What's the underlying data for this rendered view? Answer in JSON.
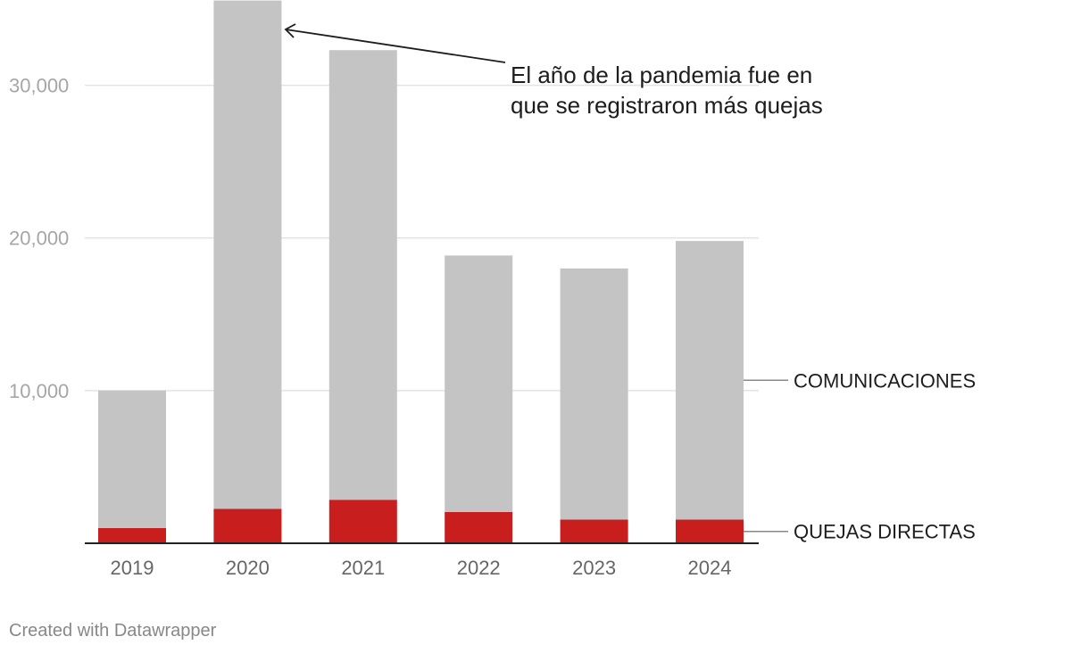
{
  "chart_data": {
    "type": "bar",
    "stacked": true,
    "categories": [
      "2019",
      "2020",
      "2021",
      "2022",
      "2023",
      "2024"
    ],
    "series": [
      {
        "name": "QUEJAS DIRECTAS",
        "values": [
          1000,
          2250,
          2850,
          2050,
          1550,
          1550
        ],
        "color": "#c81e1e"
      },
      {
        "name": "COMUNICACIONES",
        "values": [
          9000,
          33300,
          29450,
          16800,
          16450,
          18250
        ],
        "color": "#c4c4c4"
      }
    ],
    "ylim": [
      0,
      35000
    ],
    "yticks": [
      10000,
      20000,
      30000
    ],
    "ytick_labels": [
      "10,000",
      "20,000",
      "30,000"
    ],
    "grid": true,
    "annotation": {
      "lines": [
        "El año de la pandemia fue en",
        "que se registraron más quejas"
      ],
      "target_category": "2020"
    }
  },
  "credit": "Created with Datawrapper"
}
